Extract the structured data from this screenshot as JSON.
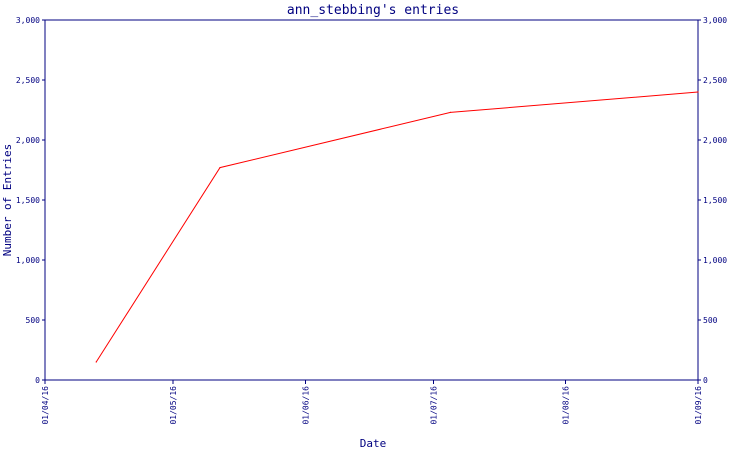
{
  "chart_data": {
    "type": "line",
    "title": "ann_stebbing's entries",
    "xlabel": "Date",
    "ylabel": "Number of Entries",
    "x_ticks": [
      {
        "date": "2016-04-01",
        "label": "01/04/16"
      },
      {
        "date": "2016-05-01",
        "label": "01/05/16"
      },
      {
        "date": "2016-06-01",
        "label": "01/06/16"
      },
      {
        "date": "2016-07-01",
        "label": "01/07/16"
      },
      {
        "date": "2016-08-01",
        "label": "01/08/16"
      },
      {
        "date": "2016-09-01",
        "label": "01/09/16"
      }
    ],
    "y_ticks": [
      {
        "value": 0,
        "label": "0"
      },
      {
        "value": 500,
        "label": "500"
      },
      {
        "value": 1000,
        "label": "1,000"
      },
      {
        "value": 1500,
        "label": "1,500"
      },
      {
        "value": 2000,
        "label": "2,000"
      },
      {
        "value": 2500,
        "label": "2,500"
      },
      {
        "value": 3000,
        "label": "3,000"
      }
    ],
    "xlim": [
      "2016-04-01",
      "2016-09-01"
    ],
    "ylim": [
      0,
      3000
    ],
    "grid": false,
    "series": [
      {
        "color": "#ff0000",
        "points": [
          {
            "x": "2016-04-13",
            "y": 150
          },
          {
            "x": "2016-05-12",
            "y": 1770
          },
          {
            "x": "2016-07-05",
            "y": 2230
          },
          {
            "x": "2016-09-01",
            "y": 2400
          }
        ]
      }
    ]
  },
  "colors": {
    "axis": "#000080",
    "background": "#ffffff"
  }
}
